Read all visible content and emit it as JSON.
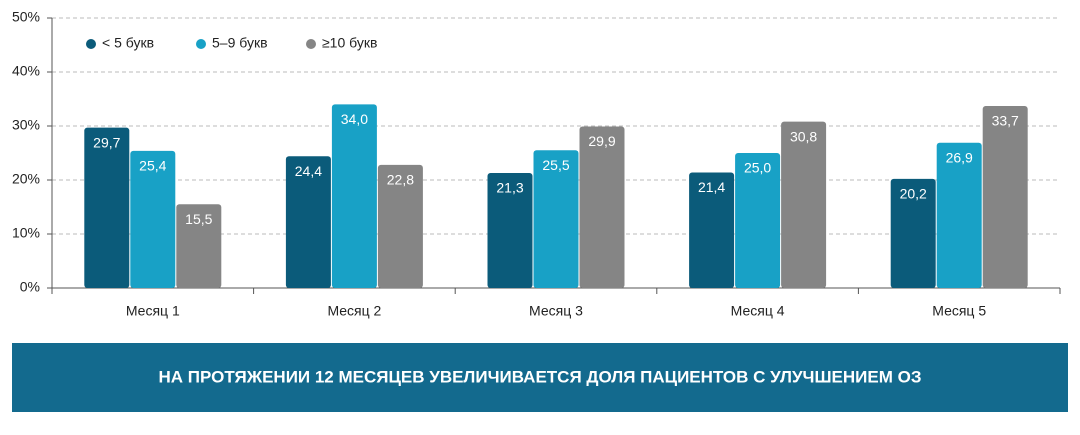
{
  "chart_data": {
    "type": "bar",
    "categories": [
      "Месяц 1",
      "Месяц 2",
      "Месяц 3",
      "Месяц 4",
      "Месяц 5"
    ],
    "series": [
      {
        "name": "< 5 букв",
        "color": "#0b5b7a",
        "values": [
          29.7,
          24.4,
          21.3,
          21.4,
          20.2
        ],
        "value_labels": [
          "29,7",
          "24,4",
          "21,3",
          "21,4",
          "20,2"
        ]
      },
      {
        "name": "5–9 букв",
        "color": "#18a1c6",
        "values": [
          25.4,
          34.0,
          25.5,
          25.0,
          26.9
        ],
        "value_labels": [
          "25,4",
          "34,0",
          "25,5",
          "25,0",
          "26,9"
        ]
      },
      {
        "name": "≥10 букв",
        "color": "#858585",
        "values": [
          15.5,
          22.8,
          29.9,
          30.8,
          33.7
        ],
        "value_labels": [
          "15,5",
          "22,8",
          "29,9",
          "30,8",
          "33,7"
        ]
      }
    ],
    "ylim": [
      0,
      50
    ],
    "yticks": [
      {
        "value": 0,
        "label": "0%"
      },
      {
        "value": 10,
        "label": "10%"
      },
      {
        "value": 20,
        "label": "20%"
      },
      {
        "value": 30,
        "label": "30%"
      },
      {
        "value": 40,
        "label": "40%"
      },
      {
        "value": 50,
        "label": "50%"
      }
    ],
    "grid": true,
    "legend": "top-left",
    "banner": "НА ПРОТЯЖЕНИИ 12 МЕСЯЦЕВ УВЕЛИЧИВАЕТСЯ ДОЛЯ ПАЦИЕНТОВ С УЛУЧШЕНИЕМ ОЗ"
  }
}
